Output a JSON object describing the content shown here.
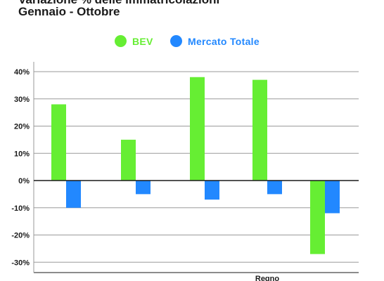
{
  "title": "Variazione % delle immatricolazioni",
  "subtitle": "Gennaio - Ottobre",
  "colors": {
    "bev": "#66ee33",
    "mercato": "#2288ff",
    "grid": "#9a9a9a",
    "axis": "#1a1a1a"
  },
  "chart_data": {
    "type": "bar",
    "title": "Variazione % delle immatricolazioni",
    "subtitle": "Gennaio - Ottobre",
    "categories": [
      "",
      "",
      "",
      "Regno",
      ""
    ],
    "series": [
      {
        "name": "BEV",
        "values": [
          28,
          15,
          38,
          37,
          -27
        ]
      },
      {
        "name": "Mercato Totale",
        "values": [
          -10,
          -5,
          -7,
          -5,
          -12
        ]
      }
    ],
    "yticks": [
      "40%",
      "30%",
      "20%",
      "10%",
      "0%",
      "-10%",
      "-20%",
      "-30%"
    ],
    "ylim": [
      -35,
      45
    ],
    "grid": true,
    "legend": "top-center"
  }
}
